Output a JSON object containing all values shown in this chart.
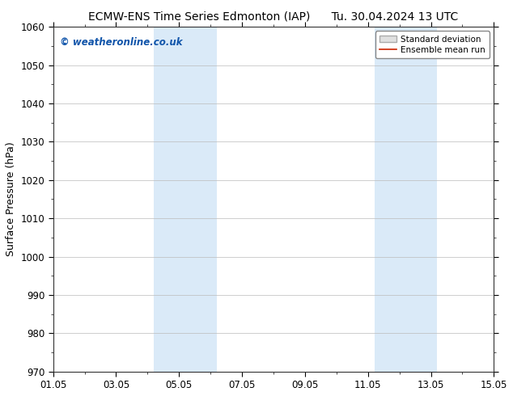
{
  "title_left": "ECMW-ENS Time Series Edmonton (IAP)",
  "title_right": "Tu. 30.04.2024 13 UTC",
  "ylabel": "Surface Pressure (hPa)",
  "xlabel": "",
  "ylim": [
    970,
    1060
  ],
  "yticks": [
    970,
    980,
    990,
    1000,
    1010,
    1020,
    1030,
    1040,
    1050,
    1060
  ],
  "xtick_labels": [
    "01.05",
    "03.05",
    "05.05",
    "07.05",
    "09.05",
    "11.05",
    "13.05",
    "15.05"
  ],
  "xtick_positions": [
    0,
    2,
    4,
    6,
    8,
    10,
    12,
    14
  ],
  "xmin": 0,
  "xmax": 14,
  "shaded_bands": [
    {
      "x_start": 3.2,
      "x_end": 5.2,
      "color": "#daeaf8"
    },
    {
      "x_start": 10.2,
      "x_end": 12.2,
      "color": "#daeaf8"
    }
  ],
  "watermark_text": "© weatheronline.co.uk",
  "watermark_color": "#1155aa",
  "legend_entries": [
    {
      "label": "Standard deviation",
      "type": "patch",
      "facecolor": "#e0e0e0",
      "edgecolor": "#aaaaaa"
    },
    {
      "label": "Ensemble mean run",
      "type": "line",
      "color": "#cc2200"
    }
  ],
  "background_color": "#ffffff",
  "grid_color": "#bbbbbb",
  "title_fontsize": 10,
  "axis_label_fontsize": 9,
  "tick_fontsize": 8.5,
  "watermark_fontsize": 8.5,
  "legend_fontsize": 7.5
}
